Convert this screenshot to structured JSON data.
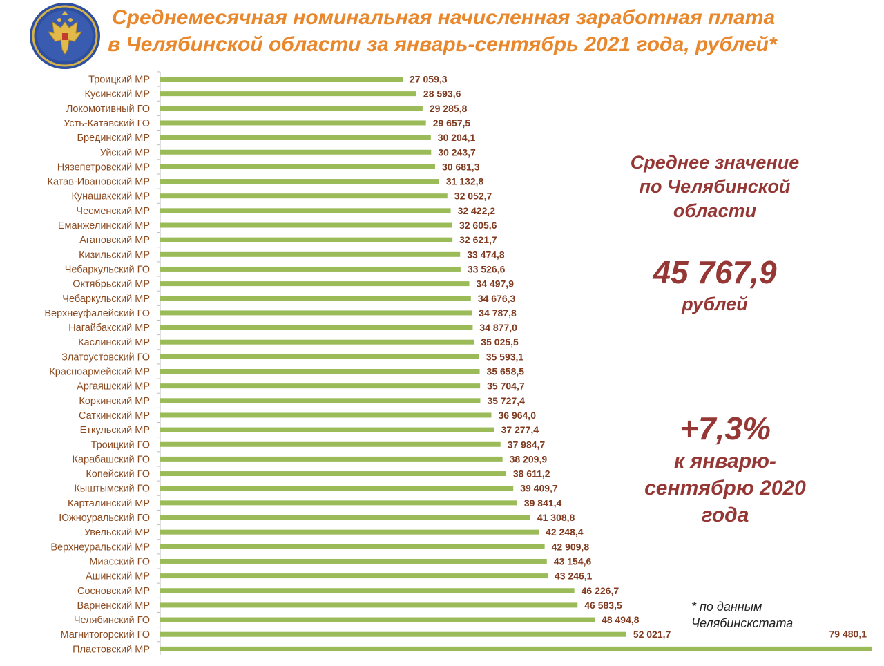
{
  "title": {
    "line1": "Среднемесячная номинальная начисленная заработная плата",
    "line2": "в Челябинской области за январь-сентябрь 2021 года, рублей*"
  },
  "colors": {
    "title": "#E8872B",
    "bar": "#9BBB59",
    "category_label": "#8B4A1F",
    "value_label": "#7F3A1F",
    "highlight": "#953735",
    "axis": "#BFBFBF"
  },
  "emblem": {
    "icon": "double-headed-eagle-emblem"
  },
  "chart_data": {
    "type": "bar",
    "orientation": "horizontal",
    "categories": [
      "Троицкий МР",
      "Кусинский МР",
      "Локомотивный ГО",
      "Усть-Катавский ГО",
      "Брединский МР",
      "Уйский МР",
      "Нязепетровский МР",
      "Катав-Ивановский МР",
      "Кунашакский МР",
      "Чесменский МР",
      "Еманжелинский МР",
      "Агаповский МР",
      "Кизильский МР",
      "Чебаркульский ГО",
      "Октябрьский МР",
      "Чебаркульский МР",
      "Верхнеуфалейский ГО",
      "Нагайбакский МР",
      "Каслинский МР",
      "Златоустовский ГО",
      "Красноармейский МР",
      "Аргаяшский МР",
      "Коркинский МР",
      "Саткинский МР",
      "Еткульский МР",
      "Троицкий ГО",
      "Карабашский ГО",
      "Копейский ГО",
      "Кыштымский ГО",
      "Карталинский МР",
      "Южноуральский ГО",
      "Увельский МР",
      "Верхнеуральский МР",
      "Миасский ГО",
      "Ашинский МР",
      "Сосновский МР",
      "Варненский МР",
      "Челябинский ГО",
      "Магнитогорский ГО",
      "Пластовский МР"
    ],
    "values": [
      27059.3,
      28593.6,
      29285.8,
      29657.5,
      30204.1,
      30243.7,
      30681.3,
      31132.8,
      32052.7,
      32422.2,
      32605.6,
      32621.7,
      33474.8,
      33526.6,
      34497.9,
      34676.3,
      34787.8,
      34877.0,
      35025.5,
      35593.1,
      35658.5,
      35704.7,
      35727.4,
      36964.0,
      37277.4,
      37984.7,
      38209.9,
      38611.2,
      39409.7,
      39841.4,
      41308.8,
      42248.4,
      42909.8,
      43154.6,
      43246.1,
      46226.7,
      46583.5,
      48494.8,
      52021.7,
      79480.1
    ],
    "value_labels": [
      "27 059,3",
      "28 593,6",
      "29 285,8",
      "29 657,5",
      "30 204,1",
      "30 243,7",
      "30 681,3",
      "31 132,8",
      "32 052,7",
      "32 422,2",
      "32 605,6",
      "32 621,7",
      "33 474,8",
      "33 526,6",
      "34 497,9",
      "34 676,3",
      "34 787,8",
      "34 877,0",
      "35 025,5",
      "35 593,1",
      "35 658,5",
      "35 704,7",
      "35 727,4",
      "36 964,0",
      "37 277,4",
      "37 984,7",
      "38 209,9",
      "38 611,2",
      "39 409,7",
      "39 841,4",
      "41 308,8",
      "42 248,4",
      "42 909,8",
      "43 154,6",
      "43 246,1",
      "46 226,7",
      "46 583,5",
      "48 494,8",
      "52 021,7",
      "79 480,1"
    ],
    "xlim": [
      0,
      79480.1
    ],
    "grid": false,
    "legend": "none"
  },
  "summary": {
    "average_label": "Среднее значение по Челябинской области",
    "average_value": "45 767,9",
    "average_unit": "рублей",
    "growth_value": "+7,3%",
    "growth_text": "к январю-сентябрю 2020 года"
  },
  "footnote": "* по данным Челябинскстата"
}
